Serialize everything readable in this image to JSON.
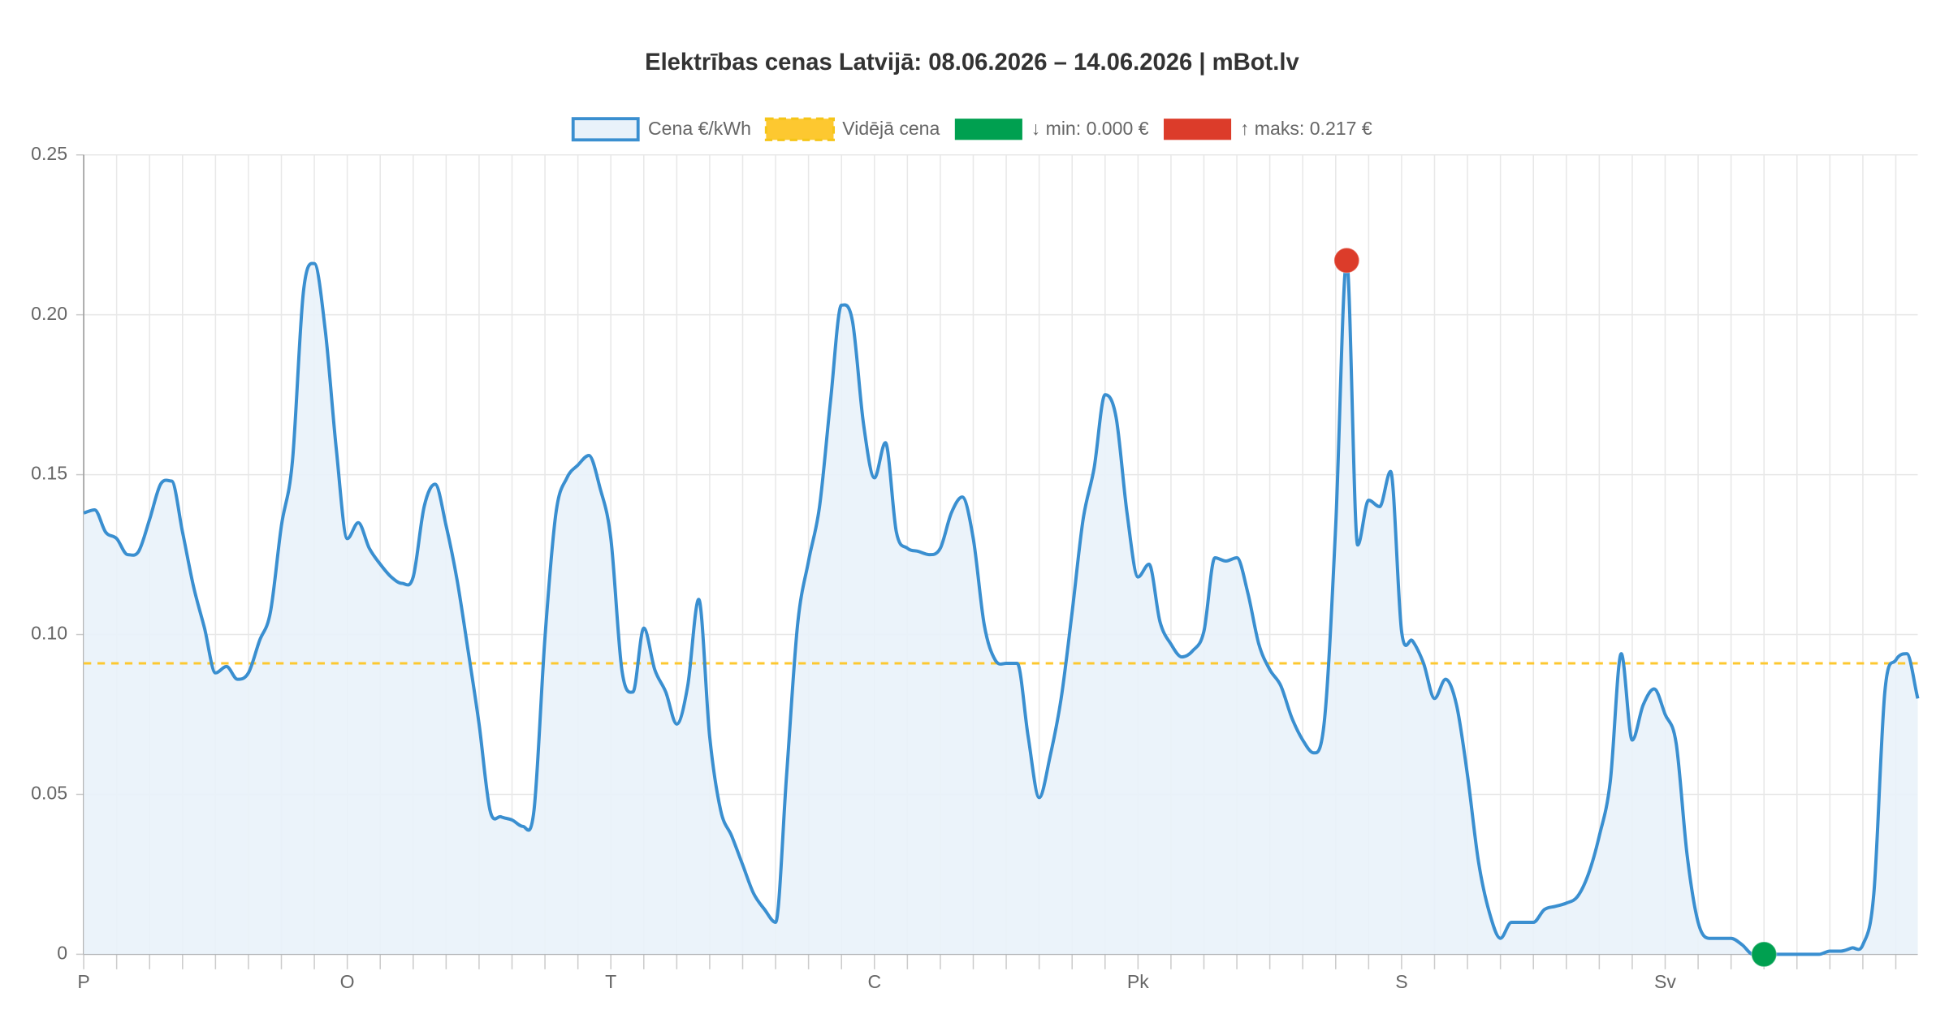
{
  "chart_data": {
    "type": "line",
    "title": "Elektrības cenas Latvijā: 08.06.2026 – 14.06.2026 | mBot.lv",
    "categories": [
      "P",
      null,
      null,
      null,
      null,
      null,
      null,
      null,
      null,
      null,
      null,
      null,
      null,
      null,
      null,
      null,
      null,
      null,
      null,
      null,
      null,
      null,
      null,
      null,
      "O",
      null,
      null,
      null,
      null,
      null,
      null,
      null,
      null,
      null,
      null,
      null,
      null,
      null,
      null,
      null,
      null,
      null,
      null,
      null,
      null,
      null,
      null,
      null,
      "T",
      null,
      null,
      null,
      null,
      null,
      null,
      null,
      null,
      null,
      null,
      null,
      null,
      null,
      null,
      null,
      null,
      null,
      null,
      null,
      null,
      null,
      null,
      null,
      "C",
      null,
      null,
      null,
      null,
      null,
      null,
      null,
      null,
      null,
      null,
      null,
      null,
      null,
      null,
      null,
      null,
      null,
      null,
      null,
      null,
      null,
      null,
      null,
      "Pk",
      null,
      null,
      null,
      null,
      null,
      null,
      null,
      null,
      null,
      null,
      null,
      null,
      null,
      null,
      null,
      null,
      null,
      null,
      null,
      null,
      null,
      null,
      null,
      "S",
      null,
      null,
      null,
      null,
      null,
      null,
      null,
      null,
      null,
      null,
      null,
      null,
      null,
      null,
      null,
      null,
      null,
      null,
      null,
      null,
      null,
      null,
      null,
      "Sv",
      null,
      null,
      null,
      null,
      null,
      null,
      null,
      null,
      null,
      null,
      null,
      null,
      null,
      null,
      null,
      null,
      null,
      null,
      null,
      null,
      null,
      null,
      null
    ],
    "series": [
      {
        "name": "Cena €/kWh",
        "color": "#3a8fd0",
        "fill": "#e9f2fa",
        "values": [
          0.138,
          0.139,
          0.132,
          0.13,
          0.125,
          0.126,
          0.136,
          0.147,
          0.148,
          0.132,
          0.115,
          0.102,
          0.088,
          0.09,
          0.086,
          0.088,
          0.098,
          0.107,
          0.134,
          0.154,
          0.207,
          0.216,
          0.195,
          0.158,
          0.13,
          0.135,
          0.127,
          0.122,
          0.118,
          0.116,
          0.118,
          0.14,
          0.147,
          0.134,
          0.117,
          0.095,
          0.072,
          0.045,
          0.043,
          0.042,
          0.04,
          0.045,
          0.099,
          0.138,
          0.149,
          0.153,
          0.156,
          0.146,
          0.13,
          0.089,
          0.082,
          0.102,
          0.089,
          0.082,
          0.072,
          0.084,
          0.111,
          0.068,
          0.045,
          0.037,
          0.028,
          0.019,
          0.014,
          0.01,
          0.056,
          0.103,
          0.123,
          0.14,
          0.173,
          0.203,
          0.198,
          0.166,
          0.149,
          0.16,
          0.132,
          0.127,
          0.126,
          0.125,
          0.127,
          0.138,
          0.143,
          0.13,
          0.103,
          0.092,
          0.091,
          0.091,
          0.068,
          0.049,
          0.062,
          0.08,
          0.107,
          0.136,
          0.152,
          0.175,
          0.168,
          0.138,
          0.118,
          0.122,
          0.104,
          0.097,
          0.093,
          0.095,
          0.101,
          0.124,
          0.123,
          0.124,
          0.113,
          0.097,
          0.089,
          0.084,
          0.074,
          0.067,
          0.063,
          0.074,
          0.134,
          0.217,
          0.128,
          0.142,
          0.14,
          0.151,
          0.101,
          0.098,
          0.091,
          0.08,
          0.086,
          0.078,
          0.056,
          0.029,
          0.013,
          0.005,
          0.01,
          0.01,
          0.01,
          0.014,
          0.015,
          0.016,
          0.018,
          0.025,
          0.037,
          0.054,
          0.094,
          0.067,
          0.078,
          0.083,
          0.075,
          0.066,
          0.031,
          0.01,
          0.005,
          0.005,
          0.005,
          0.003,
          0,
          0,
          0,
          0,
          0,
          0,
          0,
          0.001,
          0.001,
          0.002,
          0.003,
          0.019,
          0.082,
          0.092,
          0.094,
          0.08
        ]
      },
      {
        "name": "Vidējā cena",
        "color": "#fdc830",
        "style": "dashed",
        "value": 0.091
      },
      {
        "name": "↓ min: 0.000 €",
        "color": "#00a050",
        "index": 153,
        "value": 0
      },
      {
        "name": "↑ maks: 0.217 €",
        "color": "#dc3c2a",
        "index": 115,
        "value": 0.217
      }
    ],
    "ylim": [
      0,
      0.25
    ],
    "yticks": [
      0,
      0.05,
      {
        "value": 0.1,
        "label": "0.10"
      },
      0.15,
      {
        "value": 0.2,
        "label": "0.20"
      },
      0.25
    ],
    "grid": true
  }
}
